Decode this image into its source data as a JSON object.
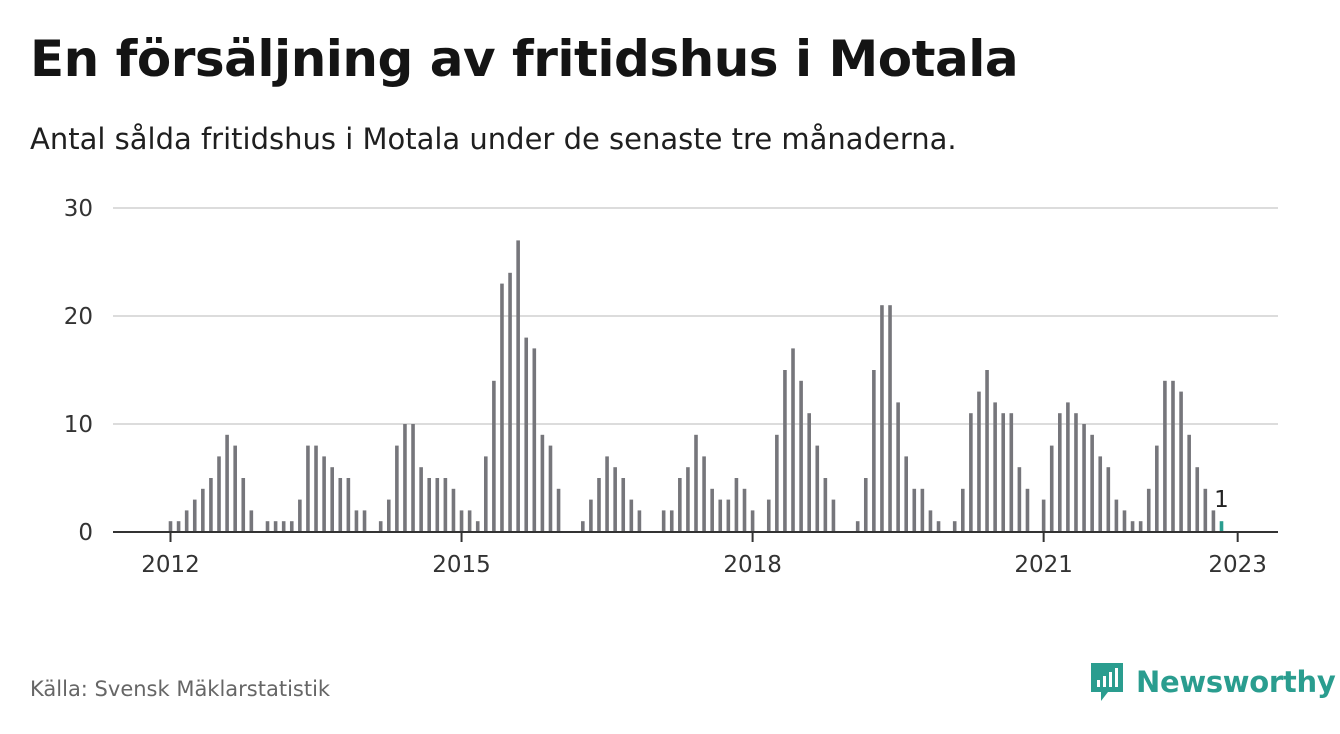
{
  "title": "En försäljning av fritidshus i Motala",
  "subtitle": "Antal sålda fritidshus i Motala under de senaste tre månaderna.",
  "source": "Källa: Svensk Mäklarstatistik",
  "brand": {
    "name": "Newsworthy",
    "icon": "newsworthy-logo-icon"
  },
  "colors": {
    "bar": "#76767b",
    "highlight": "#2a9d8f",
    "grid": "#dcdcdc",
    "axis": "#333333"
  },
  "chart_data": {
    "type": "bar",
    "x_start": "2012-01",
    "x_end": "2023-01",
    "x_step": "month",
    "ylim": [
      0,
      30
    ],
    "yticks": [
      0,
      10,
      20,
      30
    ],
    "xticks": [
      "2012",
      "2015",
      "2018",
      "2021",
      "2023"
    ],
    "grid": true,
    "highlight_last": true,
    "last_label": "1",
    "values": [
      1,
      1,
      2,
      3,
      4,
      5,
      7,
      9,
      8,
      5,
      2,
      0,
      1,
      1,
      1,
      1,
      3,
      8,
      8,
      7,
      6,
      5,
      5,
      2,
      2,
      0,
      1,
      3,
      8,
      10,
      10,
      6,
      5,
      5,
      5,
      4,
      2,
      2,
      1,
      7,
      14,
      23,
      24,
      27,
      18,
      17,
      9,
      8,
      4,
      0,
      0,
      1,
      3,
      5,
      7,
      6,
      5,
      3,
      2,
      0,
      0,
      2,
      2,
      5,
      6,
      9,
      7,
      4,
      3,
      3,
      5,
      4,
      2,
      0,
      3,
      9,
      15,
      17,
      14,
      11,
      8,
      5,
      3,
      0,
      0,
      1,
      5,
      15,
      21,
      21,
      12,
      7,
      4,
      4,
      2,
      1,
      0,
      1,
      4,
      11,
      13,
      15,
      12,
      11,
      11,
      6,
      4,
      0,
      3,
      8,
      11,
      12,
      11,
      10,
      9,
      7,
      6,
      3,
      2,
      1,
      1,
      4,
      8,
      14,
      14,
      13,
      9,
      6,
      4,
      2,
      1
    ]
  }
}
